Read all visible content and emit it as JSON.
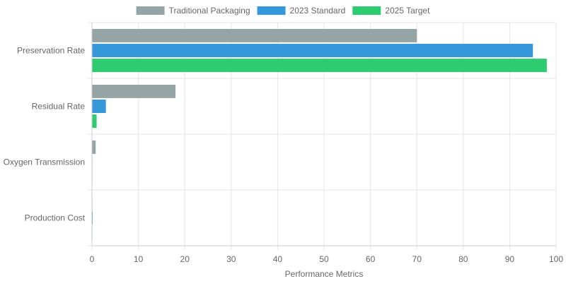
{
  "chart_data": {
    "type": "bar",
    "orientation": "horizontal",
    "categories": [
      "Preservation Rate",
      "Residual Rate",
      "Oxygen Transmission",
      "Production Cost"
    ],
    "series": [
      {
        "name": "Traditional Packaging",
        "color": "#95a5a6",
        "values": [
          70,
          18,
          0.8,
          0.05
        ]
      },
      {
        "name": "2023 Standard",
        "color": "#3498db",
        "values": [
          95,
          3,
          0.05,
          0.15
        ]
      },
      {
        "name": "2025 Target",
        "color": "#2ecc71",
        "values": [
          98,
          1,
          0.02,
          0.1
        ]
      }
    ],
    "xlabel": "Performance Metrics",
    "ylabel": "",
    "xlim": [
      0,
      100
    ],
    "xticks": [
      0,
      10,
      20,
      30,
      40,
      50,
      60,
      70,
      80,
      90,
      100
    ],
    "legend_position": "top-center",
    "grid": true
  }
}
